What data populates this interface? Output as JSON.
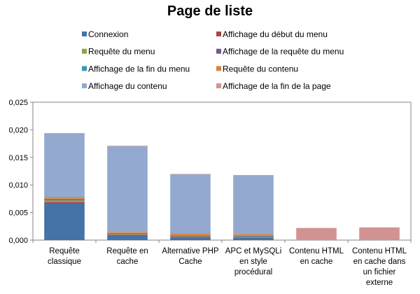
{
  "chart_data": {
    "type": "bar",
    "stacked": true,
    "title": "Page de liste",
    "xlabel": "",
    "ylabel": "",
    "ylim": [
      0,
      0.025
    ],
    "yticks": [
      "0,000",
      "0,005",
      "0,010",
      "0,015",
      "0,020",
      "0,025"
    ],
    "legend_position": "top",
    "grid": false,
    "categories": [
      [
        "Requête",
        "classique"
      ],
      [
        "Requête en",
        "cache"
      ],
      [
        "Alternative PHP",
        "Cache"
      ],
      [
        "APC et MySQLi",
        "en style",
        "procédural"
      ],
      [
        "Contenu HTML",
        "en cache"
      ],
      [
        "Contenu HTML",
        "en cache dans",
        "un fichier",
        "externe"
      ]
    ],
    "series": [
      {
        "name": "Connexion",
        "color": "#4572A7",
        "values": [
          0.0066,
          0.0009,
          0.0004,
          0.0004,
          0,
          0
        ]
      },
      {
        "name": "Affichage du début du menu",
        "color": "#AA4643",
        "values": [
          0.0003,
          0.0001,
          0.0002,
          0.0001,
          0,
          0
        ]
      },
      {
        "name": "Requête du menu",
        "color": "#89A54E",
        "values": [
          0.0003,
          0.0001,
          0.0001,
          0.0001,
          0,
          0
        ]
      },
      {
        "name": "Affichage de la requête du menu",
        "color": "#71588F",
        "values": [
          0.0002,
          0.0001,
          0.0001,
          0.0001,
          0,
          0
        ]
      },
      {
        "name": "Affichage de la fin du menu",
        "color": "#4198AF",
        "values": [
          0.0001,
          0.0001,
          0.0001,
          0.0001,
          0,
          0
        ]
      },
      {
        "name": "Requête du contenu",
        "color": "#DB843D",
        "values": [
          0.0003,
          0.0002,
          0.0003,
          0.0003,
          0,
          0
        ]
      },
      {
        "name": "Affichage du contenu",
        "color": "#93A9CF",
        "values": [
          0.0115,
          0.0155,
          0.0107,
          0.0106,
          0,
          0
        ]
      },
      {
        "name": "Affichage de la fin de la page",
        "color": "#D19392",
        "values": [
          0.0001,
          0.0001,
          0.0001,
          0.0001,
          0.0022,
          0.0023
        ]
      }
    ]
  }
}
